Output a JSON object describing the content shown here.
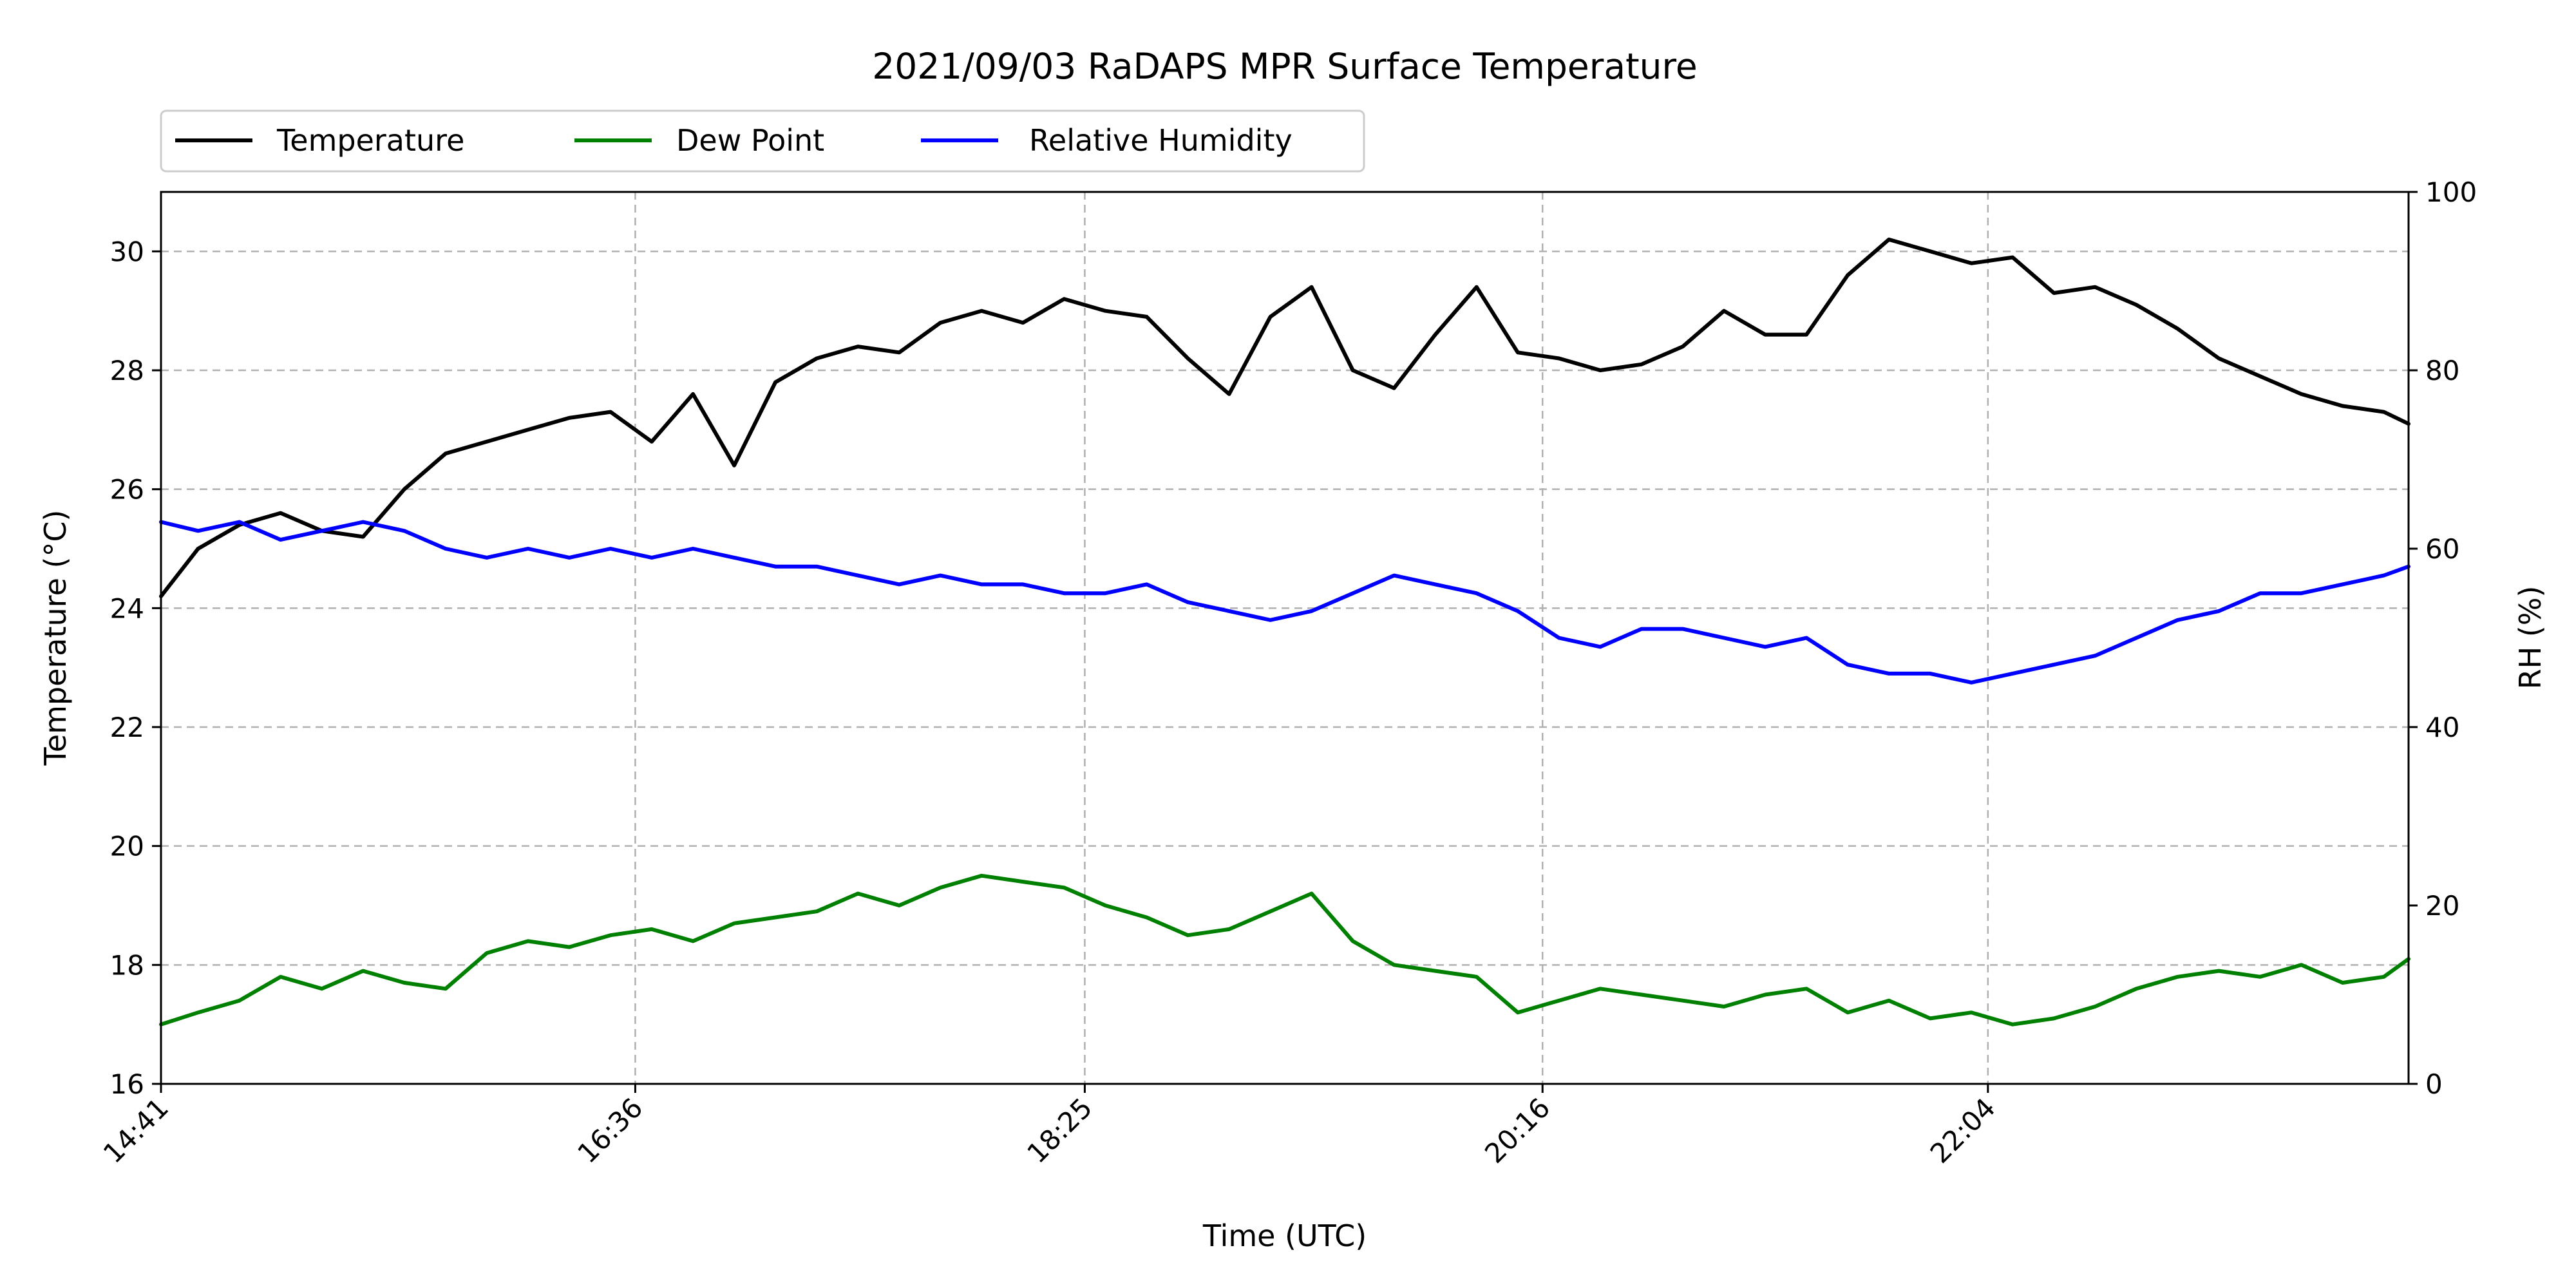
{
  "chart_data": {
    "type": "line",
    "title": "2021/09/03 RaDAPS MPR Surface Temperature",
    "xlabel": "Time (UTC)",
    "ylabel_left": "Temperature ($^\\circ$C)",
    "ylabel_left_text": "Temperature (°C)",
    "ylabel_right": "RH (%)",
    "x_ticks": [
      "14:41",
      "16:36",
      "18:25",
      "20:16",
      "22:04"
    ],
    "x_range": [
      "14:41",
      "23:46"
    ],
    "y_left_range": [
      16,
      31
    ],
    "y_left_ticks": [
      "16",
      "18",
      "20",
      "22",
      "24",
      "26",
      "28",
      "30"
    ],
    "y_right_range": [
      0,
      100
    ],
    "y_right_ticks": [
      "0",
      "20",
      "40",
      "60",
      "80",
      "100"
    ],
    "grid": true,
    "legend_position": "top-left, above plot",
    "series": [
      {
        "name": "Temperature",
        "axis": "left",
        "color": "#000000",
        "x": [
          "14:41",
          "14:50",
          "15:00",
          "15:10",
          "15:20",
          "15:30",
          "15:40",
          "15:50",
          "16:00",
          "16:10",
          "16:20",
          "16:30",
          "16:40",
          "16:50",
          "17:00",
          "17:10",
          "17:20",
          "17:30",
          "17:40",
          "17:50",
          "18:00",
          "18:10",
          "18:20",
          "18:30",
          "18:40",
          "18:50",
          "19:00",
          "19:10",
          "19:20",
          "19:30",
          "19:40",
          "19:50",
          "20:00",
          "20:10",
          "20:20",
          "20:30",
          "20:40",
          "20:50",
          "21:00",
          "21:10",
          "21:20",
          "21:30",
          "21:40",
          "21:50",
          "22:00",
          "22:10",
          "22:20",
          "22:30",
          "22:40",
          "22:50",
          "23:00",
          "23:10",
          "23:20",
          "23:30",
          "23:40",
          "23:46"
        ],
        "values": [
          24.2,
          25.0,
          25.4,
          25.6,
          25.3,
          25.2,
          26.0,
          26.6,
          26.8,
          27.0,
          27.2,
          27.3,
          26.8,
          27.6,
          26.4,
          27.8,
          28.2,
          28.4,
          28.3,
          28.8,
          29.0,
          28.8,
          29.2,
          29.0,
          28.9,
          28.2,
          27.6,
          28.9,
          29.4,
          28.0,
          27.7,
          28.6,
          29.4,
          28.3,
          28.2,
          28.0,
          28.1,
          28.4,
          29.0,
          28.6,
          28.6,
          29.6,
          30.2,
          30.0,
          29.8,
          29.9,
          29.3,
          29.4,
          29.1,
          28.7,
          28.2,
          27.9,
          27.6,
          27.4,
          27.3,
          27.1
        ]
      },
      {
        "name": "Dew Point",
        "axis": "left",
        "color": "#008000",
        "x": [
          "14:41",
          "14:50",
          "15:00",
          "15:10",
          "15:20",
          "15:30",
          "15:40",
          "15:50",
          "16:00",
          "16:10",
          "16:20",
          "16:30",
          "16:40",
          "16:50",
          "17:00",
          "17:10",
          "17:20",
          "17:30",
          "17:40",
          "17:50",
          "18:00",
          "18:10",
          "18:20",
          "18:30",
          "18:40",
          "18:50",
          "19:00",
          "19:10",
          "19:20",
          "19:30",
          "19:40",
          "19:50",
          "20:00",
          "20:10",
          "20:20",
          "20:30",
          "20:40",
          "20:50",
          "21:00",
          "21:10",
          "21:20",
          "21:30",
          "21:40",
          "21:50",
          "22:00",
          "22:10",
          "22:20",
          "22:30",
          "22:40",
          "22:50",
          "23:00",
          "23:10",
          "23:20",
          "23:30",
          "23:40",
          "23:46"
        ],
        "values": [
          17.0,
          17.2,
          17.4,
          17.8,
          17.6,
          17.9,
          17.7,
          17.6,
          18.2,
          18.4,
          18.3,
          18.5,
          18.6,
          18.4,
          18.7,
          18.8,
          18.9,
          19.2,
          19.0,
          19.3,
          19.5,
          19.4,
          19.3,
          19.0,
          18.8,
          18.5,
          18.6,
          18.9,
          19.2,
          18.4,
          18.0,
          17.9,
          17.8,
          17.2,
          17.4,
          17.6,
          17.5,
          17.4,
          17.3,
          17.5,
          17.6,
          17.2,
          17.4,
          17.1,
          17.2,
          17.0,
          17.1,
          17.3,
          17.6,
          17.8,
          17.9,
          17.8,
          18.0,
          17.7,
          17.8,
          18.1
        ]
      },
      {
        "name": "Relative Humidity",
        "axis": "right",
        "color": "#0000ff",
        "x": [
          "14:41",
          "14:50",
          "15:00",
          "15:10",
          "15:20",
          "15:30",
          "15:40",
          "15:50",
          "16:00",
          "16:10",
          "16:20",
          "16:30",
          "16:40",
          "16:50",
          "17:00",
          "17:10",
          "17:20",
          "17:30",
          "17:40",
          "17:50",
          "18:00",
          "18:10",
          "18:20",
          "18:30",
          "18:40",
          "18:50",
          "19:00",
          "19:10",
          "19:20",
          "19:30",
          "19:40",
          "19:50",
          "20:00",
          "20:10",
          "20:20",
          "20:30",
          "20:40",
          "20:50",
          "21:00",
          "21:10",
          "21:20",
          "21:30",
          "21:40",
          "21:50",
          "22:00",
          "22:10",
          "22:20",
          "22:30",
          "22:40",
          "22:50",
          "23:00",
          "23:10",
          "23:20",
          "23:30",
          "23:40",
          "23:46"
        ],
        "values": [
          63,
          62,
          63,
          61,
          62,
          63,
          62,
          60,
          59,
          60,
          59,
          60,
          59,
          60,
          59,
          58,
          58,
          57,
          56,
          57,
          56,
          56,
          55,
          55,
          56,
          54,
          53,
          52,
          53,
          55,
          57,
          56,
          55,
          53,
          50,
          49,
          51,
          51,
          50,
          49,
          50,
          47,
          46,
          46,
          45,
          46,
          47,
          48,
          50,
          52,
          53,
          55,
          55,
          56,
          57,
          58
        ]
      }
    ]
  }
}
